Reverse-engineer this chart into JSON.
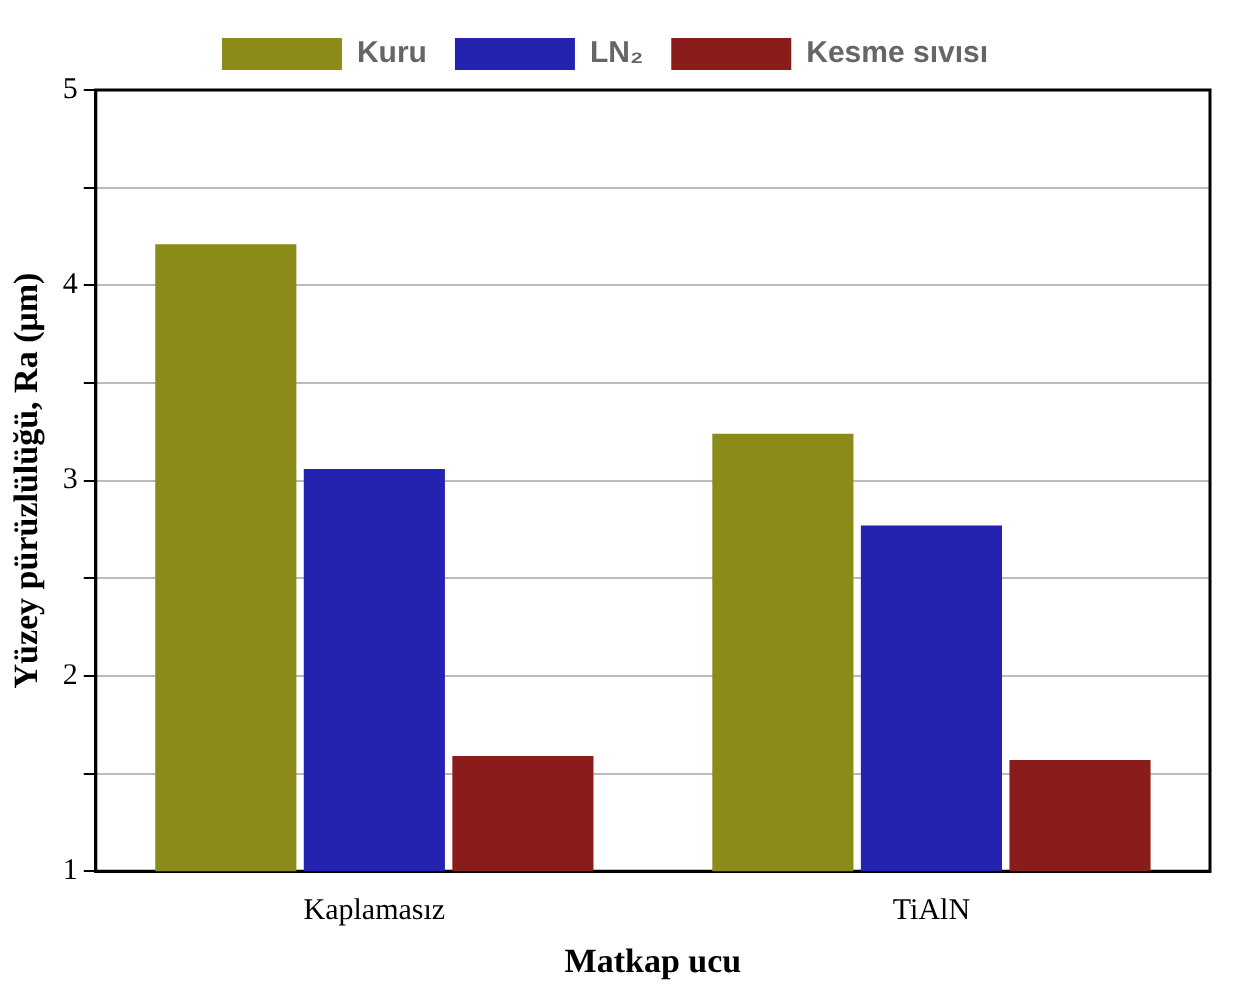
{
  "chart_data": {
    "type": "bar",
    "xlabel": "Matkap ucu",
    "ylabel": "Yüzey pürüzlülüğü, Ra (μm)",
    "categories": [
      "Kaplamasız",
      "TiAlN"
    ],
    "series": [
      {
        "name": "Kuru",
        "color": "#8b8b1a",
        "values": [
          4.21,
          3.24
        ]
      },
      {
        "name": "LN₂",
        "color": "#2323b0",
        "values": [
          3.06,
          2.77
        ]
      },
      {
        "name": "Kesme sıvısı",
        "color": "#8b1c1c",
        "values": [
          1.59,
          1.57
        ]
      }
    ],
    "ylim": [
      1,
      5
    ],
    "yticks": [
      1,
      {
        "value": 1.5,
        "label": null
      },
      2,
      {
        "value": 2.5,
        "label": null
      },
      3,
      {
        "value": 3.5,
        "label": null
      },
      4,
      {
        "value": 4.5,
        "label": null
      },
      5
    ],
    "grid": "y",
    "legend": "top"
  }
}
